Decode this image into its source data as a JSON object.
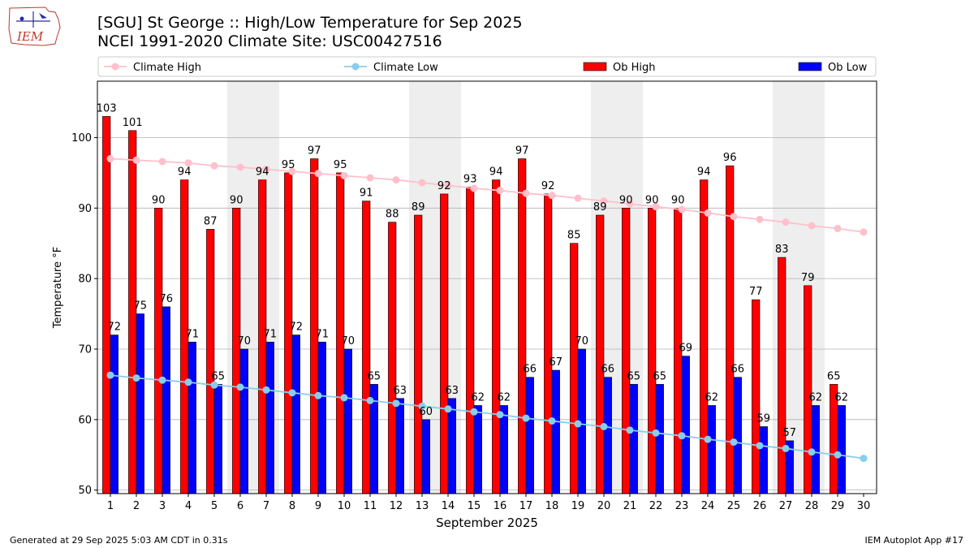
{
  "header": {
    "title_line1": "[SGU] St George :: High/Low Temperature for Sep 2025",
    "title_line2": "NCEI 1991-2020 Climate Site: USC00427516",
    "logo_text": "IEM"
  },
  "footer": {
    "generated": "Generated at 29 Sep 2025 5:03 AM CDT in 0.31s",
    "app": "IEM Autoplot App #17"
  },
  "colors": {
    "ob_high": "#ff0000",
    "ob_low": "#0000ff",
    "climate_high": "#ffc0cb",
    "climate_low": "#87ceeb",
    "weekend_band": "#eeeeee",
    "grid": "#b0b0b0"
  },
  "chart_data": {
    "type": "bar",
    "title": "[SGU] St George :: High/Low Temperature for Sep 2025",
    "xlabel": "September 2025",
    "ylabel": "Temperature °F",
    "xlim": [
      0.5,
      30.5
    ],
    "ylim": [
      49.5,
      108
    ],
    "yticks": [
      50,
      60,
      70,
      80,
      90,
      100
    ],
    "categories": [
      1,
      2,
      3,
      4,
      5,
      6,
      7,
      8,
      9,
      10,
      11,
      12,
      13,
      14,
      15,
      16,
      17,
      18,
      19,
      20,
      21,
      22,
      23,
      24,
      25,
      26,
      27,
      28,
      29,
      30
    ],
    "shaded_days": [
      6,
      7,
      13,
      14,
      20,
      21,
      27,
      28
    ],
    "grid": "horizontal",
    "legend": {
      "position": "top",
      "entries": [
        "Climate High",
        "Climate Low",
        "Ob High",
        "Ob Low"
      ]
    },
    "series": [
      {
        "name": "Ob High",
        "kind": "bar",
        "values": [
          103,
          101,
          90,
          94,
          87,
          90,
          94,
          95,
          97,
          95,
          91,
          88,
          89,
          92,
          93,
          94,
          97,
          92,
          85,
          89,
          90,
          90,
          90,
          94,
          96,
          77,
          83,
          79,
          65,
          null
        ]
      },
      {
        "name": "Ob Low",
        "kind": "bar",
        "values": [
          72,
          75,
          76,
          71,
          65,
          70,
          71,
          72,
          71,
          70,
          65,
          63,
          60,
          63,
          62,
          62,
          66,
          67,
          70,
          66,
          65,
          65,
          69,
          62,
          66,
          59,
          57,
          62,
          62,
          null
        ]
      },
      {
        "name": "Climate High",
        "kind": "line",
        "values": [
          97.0,
          96.8,
          96.6,
          96.4,
          96.0,
          95.8,
          95.5,
          95.2,
          94.9,
          94.6,
          94.3,
          94.0,
          93.6,
          93.2,
          92.8,
          92.5,
          92.1,
          91.8,
          91.4,
          91.0,
          90.6,
          90.2,
          89.8,
          89.3,
          88.8,
          88.4,
          88.0,
          87.5,
          87.1,
          86.6
        ]
      },
      {
        "name": "Climate Low",
        "kind": "line",
        "values": [
          66.3,
          65.9,
          65.6,
          65.3,
          64.9,
          64.6,
          64.2,
          63.8,
          63.4,
          63.1,
          62.7,
          62.3,
          61.9,
          61.5,
          61.1,
          60.7,
          60.2,
          59.8,
          59.4,
          59.0,
          58.5,
          58.1,
          57.7,
          57.2,
          56.8,
          56.3,
          55.9,
          55.4,
          55.0,
          54.5
        ]
      }
    ]
  }
}
